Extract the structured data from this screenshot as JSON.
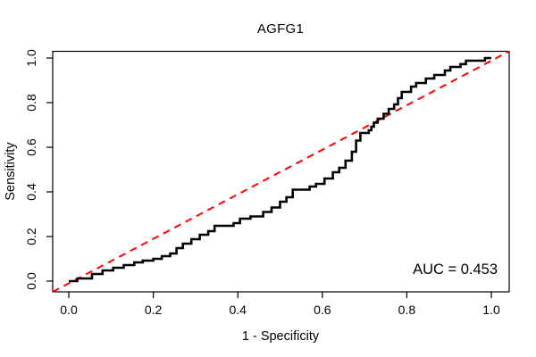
{
  "window": {
    "background": "#ffffff"
  },
  "chart_data": {
    "type": "line",
    "subtype": "roc-step-curve",
    "title": "AGFG1",
    "xlabel": "1 - Specificity",
    "ylabel": "Sensitivity",
    "xlim": [
      0.0,
      1.0
    ],
    "ylim": [
      0.0,
      1.0
    ],
    "x_ticks": [
      "0.0",
      "0.2",
      "0.4",
      "0.6",
      "0.8",
      "1.0"
    ],
    "y_ticks": [
      "0.0",
      "0.2",
      "0.4",
      "0.6",
      "0.8",
      "1.0"
    ],
    "grid": false,
    "legend": "none",
    "annotation": "AUC = 0.453",
    "auc": 0.453,
    "reference_line": {
      "name": "chance diagonal",
      "style": "dashed",
      "color": "#ff0000",
      "from": [
        0.0,
        0.0
      ],
      "to": [
        1.0,
        1.0
      ]
    },
    "series": [
      {
        "name": "ROC curve",
        "type": "step",
        "color": "#000000",
        "line_width": 2.6,
        "points": [
          [
            0.0,
            0.0
          ],
          [
            0.02,
            0.012
          ],
          [
            0.055,
            0.032
          ],
          [
            0.08,
            0.048
          ],
          [
            0.105,
            0.06
          ],
          [
            0.13,
            0.072
          ],
          [
            0.155,
            0.084
          ],
          [
            0.175,
            0.092
          ],
          [
            0.2,
            0.1
          ],
          [
            0.22,
            0.112
          ],
          [
            0.24,
            0.124
          ],
          [
            0.255,
            0.148
          ],
          [
            0.27,
            0.168
          ],
          [
            0.29,
            0.188
          ],
          [
            0.31,
            0.208
          ],
          [
            0.33,
            0.224
          ],
          [
            0.345,
            0.248
          ],
          [
            0.39,
            0.26
          ],
          [
            0.405,
            0.28
          ],
          [
            0.43,
            0.29
          ],
          [
            0.46,
            0.31
          ],
          [
            0.48,
            0.33
          ],
          [
            0.5,
            0.356
          ],
          [
            0.515,
            0.376
          ],
          [
            0.53,
            0.41
          ],
          [
            0.57,
            0.424
          ],
          [
            0.585,
            0.436
          ],
          [
            0.605,
            0.46
          ],
          [
            0.625,
            0.488
          ],
          [
            0.64,
            0.508
          ],
          [
            0.655,
            0.54
          ],
          [
            0.67,
            0.58
          ],
          [
            0.68,
            0.63
          ],
          [
            0.69,
            0.664
          ],
          [
            0.71,
            0.676
          ],
          [
            0.716,
            0.692
          ],
          [
            0.722,
            0.71
          ],
          [
            0.731,
            0.728
          ],
          [
            0.745,
            0.75
          ],
          [
            0.757,
            0.772
          ],
          [
            0.77,
            0.792
          ],
          [
            0.779,
            0.82
          ],
          [
            0.788,
            0.848
          ],
          [
            0.81,
            0.872
          ],
          [
            0.822,
            0.888
          ],
          [
            0.845,
            0.908
          ],
          [
            0.865,
            0.924
          ],
          [
            0.89,
            0.944
          ],
          [
            0.903,
            0.96
          ],
          [
            0.927,
            0.973
          ],
          [
            0.94,
            0.988
          ],
          [
            0.985,
            1.0
          ],
          [
            1.0,
            1.0
          ]
        ]
      }
    ]
  },
  "colors": {
    "curve": "#000000",
    "diagonal": "#ff0000",
    "axis": "#000000",
    "background": "#ffffff"
  }
}
